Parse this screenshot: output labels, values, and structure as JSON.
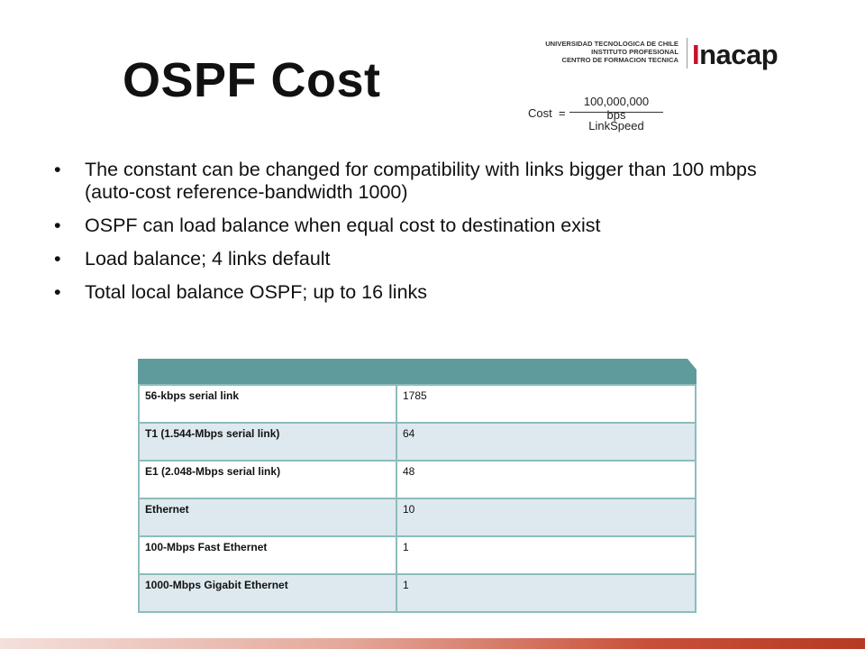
{
  "slide": {
    "title": "OSPF Cost",
    "logo": {
      "line1": "UNIVERSIDAD TECNOLOGICA DE CHILE",
      "line2": "INSTITUTO PROFESIONAL",
      "line3": "CENTRO DE FORMACION TECNICA",
      "brand_prefix": "I",
      "brand_rest": "nacap",
      "brand_accent_color": "#c8102e"
    },
    "formula": {
      "lhs": "Cost",
      "eq": "=",
      "numerator": "100,000,000 bps",
      "denominator": "LinkSpeed"
    },
    "bullets": [
      {
        "marker": "•",
        "text": "The constant can be changed for compatibility with links bigger than 100 mbps  (auto-cost reference-bandwidth 1000)"
      },
      {
        "marker": "•",
        "text": "OSPF can load balance when equal cost to destination exist"
      },
      {
        "marker": "•",
        "text": "Load balance; 4 links default"
      },
      {
        "marker": "•",
        "text": "Total local balance OSPF; up to 16 links"
      }
    ],
    "table": {
      "header_color": "#5f9b9c",
      "rows": [
        {
          "link": "56-kbps serial link",
          "cost": "1785"
        },
        {
          "link": "T1 (1.544-Mbps serial link)",
          "cost": "64"
        },
        {
          "link": "E1 (2.048-Mbps serial link)",
          "cost": "48"
        },
        {
          "link": "Ethernet",
          "cost": "10"
        },
        {
          "link": "100-Mbps Fast Ethernet",
          "cost": "1"
        },
        {
          "link": "1000-Mbps Gigabit Ethernet",
          "cost": "1"
        }
      ]
    }
  }
}
